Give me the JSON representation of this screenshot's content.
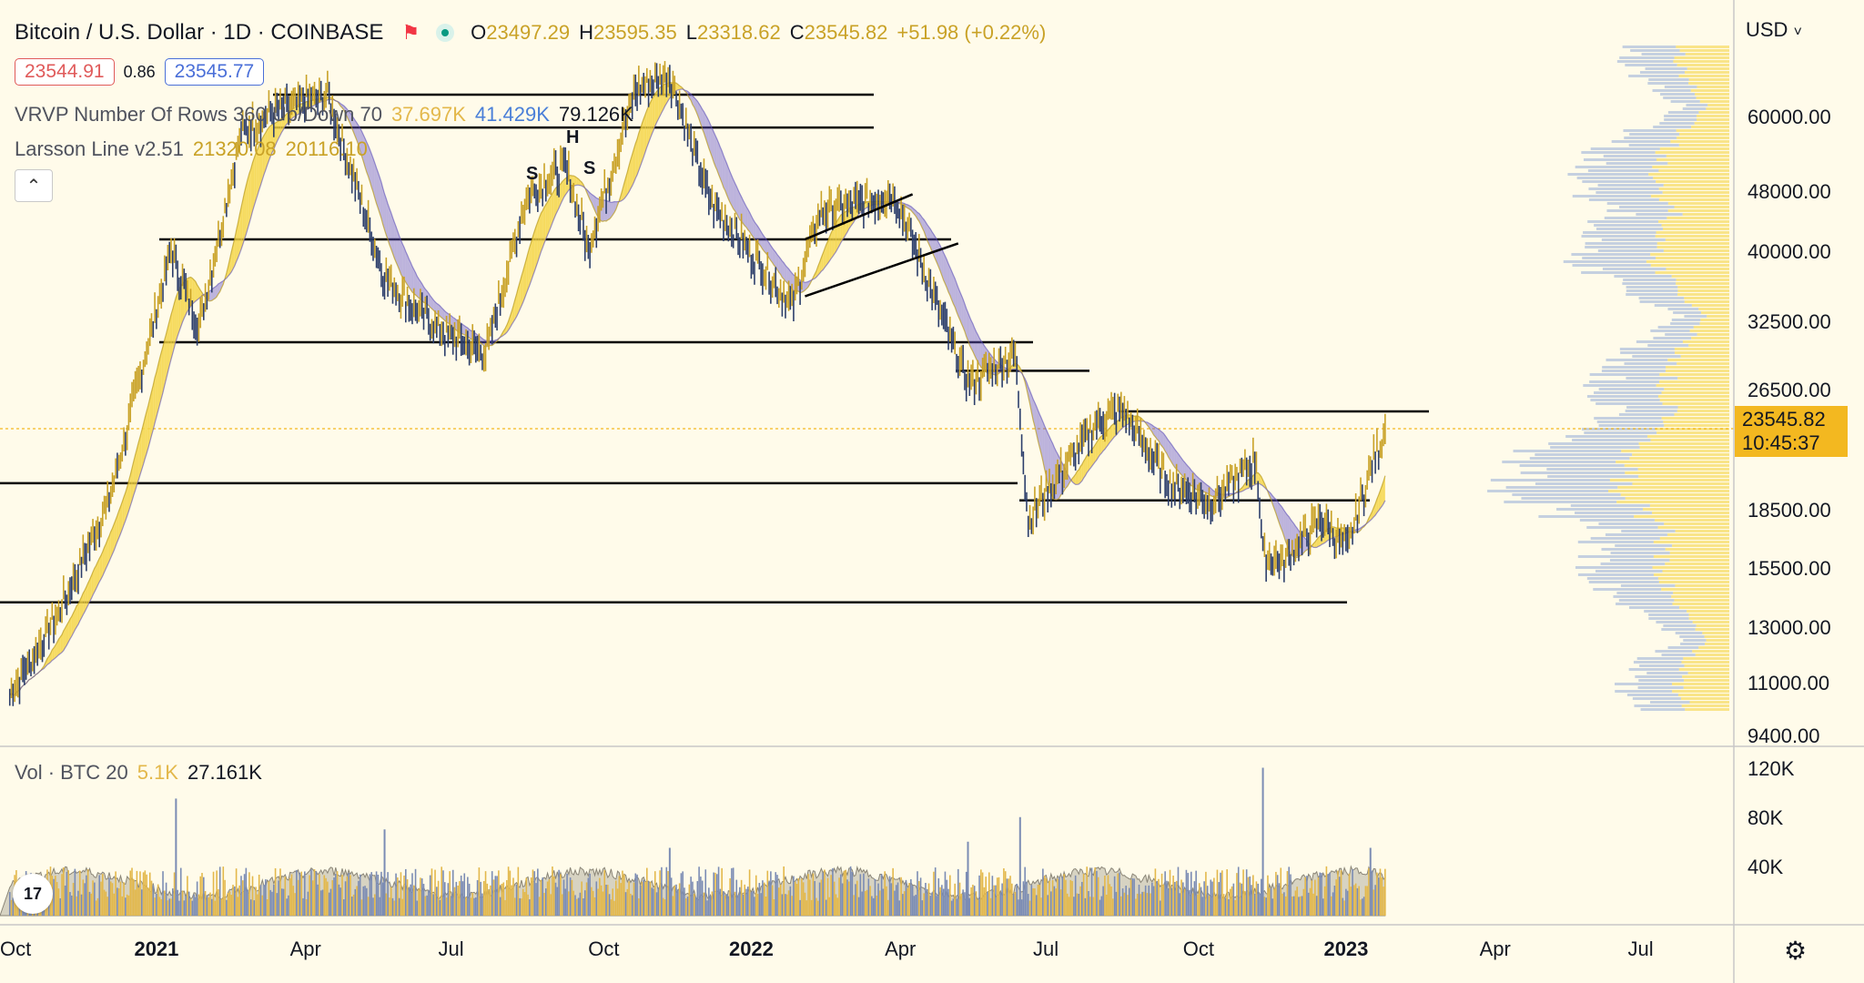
{
  "header": {
    "symbol": "Bitcoin / U.S. Dollar · 1D · COINBASE",
    "open_label": "O",
    "open": "23497.29",
    "high_label": "H",
    "high": "23595.35",
    "low_label": "L",
    "low": "23318.62",
    "close_label": "C",
    "close": "23545.82",
    "change": "+51.98 (+0.22%)",
    "bid": "23544.91",
    "spread": "0.86",
    "ask": "23545.77"
  },
  "indicators": {
    "vrvp_name": "VRVP Number Of Rows 360 Up/Down 70",
    "vrvp_up": "37.697K",
    "vrvp_down": "41.429K",
    "vrvp_total": "79.126K",
    "larsson_name": "Larsson Line v2.51",
    "larsson_v1": "21320.08",
    "larsson_v2": "20116.10",
    "volume_name": "Vol · BTC 20",
    "volume_v1": "5.1K",
    "volume_v2": "27.161K"
  },
  "axis": {
    "currency": "USD",
    "currency_caret": "˅",
    "current_price": "23545.82",
    "countdown": "10:45:37"
  },
  "annotations": {
    "shoulder_left": "S",
    "head": "H",
    "shoulder_right": "S"
  },
  "icons": {
    "logo": "tradingview-logo-icon",
    "collapse": "chevron-up-icon",
    "settings": "gear-icon",
    "alert": "alert-flag-icon",
    "market": "market-status-icon"
  },
  "colors": {
    "background": "#fffbea",
    "bull_band": "#f5d547",
    "bear_band": "#6a5acd",
    "up_volume": "#e3b84b",
    "down_volume": "#7b8cb4",
    "price_tag": "#f3b820",
    "bid_border": "#e05a5a",
    "ask_border": "#4a6fd8"
  },
  "chart_data": {
    "type": "line",
    "title": "Bitcoin / U.S. Dollar · 1D · COINBASE",
    "y_scale": "log",
    "y_ticks": [
      "60000.00",
      "48000.00",
      "40000.00",
      "32500.00",
      "26500.00",
      "18500.00",
      "15500.00",
      "13000.00",
      "11000.00",
      "9400.00"
    ],
    "volume_ticks": [
      "120K",
      "80K",
      "40K"
    ],
    "x_ticks": [
      "Oct",
      "2021",
      "Apr",
      "Jul",
      "Oct",
      "2022",
      "Apr",
      "Jul",
      "Oct",
      "2023",
      "Apr",
      "Jul"
    ],
    "ylim": [
      9000,
      72000
    ],
    "grid": false,
    "series": [
      {
        "x": [
          "2020-10-01",
          "2020-11-01",
          "2020-12-01",
          "2021-01-08",
          "2021-01-25",
          "2021-02-20",
          "2021-03-13",
          "2021-04-14",
          "2021-05-19",
          "2021-06-22",
          "2021-07-20",
          "2021-08-14",
          "2021-09-07",
          "2021-09-21",
          "2021-10-20",
          "2021-11-10",
          "2021-12-04",
          "2022-01-24",
          "2022-02-10",
          "2022-03-28",
          "2022-05-12",
          "2022-06-10",
          "2022-06-18",
          "2022-07-30",
          "2022-08-14",
          "2022-09-13",
          "2022-10-10",
          "2022-11-05",
          "2022-11-09",
          "2022-11-21",
          "2022-12-14",
          "2022-12-31",
          "2023-01-14",
          "2023-01-23"
        ],
        "values": [
          10600,
          13700,
          19000,
          40000,
          32000,
          57000,
          61000,
          64000,
          37000,
          31500,
          29500,
          47000,
          52000,
          40500,
          65000,
          68000,
          47000,
          34000,
          45000,
          47500,
          27000,
          29500,
          18000,
          24000,
          25000,
          20000,
          19000,
          21500,
          16200,
          15800,
          18000,
          16500,
          20800,
          23545
        ]
      }
    ],
    "horizontal_levels": [
      64000,
      58000,
      41500,
      30500,
      28000,
      24800,
      20000,
      19000,
      14000
    ],
    "trend_lines": [
      {
        "from": [
          "2022-02-01",
          41500
        ],
        "to": [
          "2022-04-08",
          47500
        ]
      },
      {
        "from": [
          "2022-02-01",
          35000
        ],
        "to": [
          "2022-05-06",
          41000
        ]
      }
    ],
    "volume": [
      {
        "x": "2021-01-11",
        "v": 95000
      },
      {
        "x": "2021-05-19",
        "v": 70000
      },
      {
        "x": "2021-11-10",
        "v": 55000
      },
      {
        "x": "2022-05-12",
        "v": 60000
      },
      {
        "x": "2022-06-13",
        "v": 80000
      },
      {
        "x": "2022-11-09",
        "v": 120000
      },
      {
        "x": "2023-01-14",
        "v": 55000
      }
    ]
  }
}
